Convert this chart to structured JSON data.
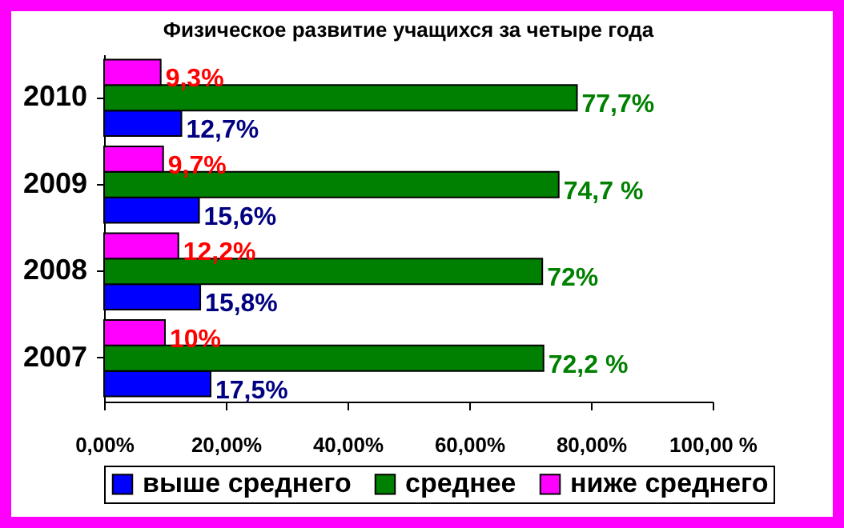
{
  "chart_data": {
    "type": "bar",
    "orientation": "horizontal",
    "title": "Физическое развитие учащихся за четыре года",
    "categories": [
      "2010",
      "2009",
      "2008",
      "2007"
    ],
    "series": [
      {
        "name": "выше среднего",
        "color": "#0000ff",
        "values": [
          12.7,
          15.6,
          15.8,
          17.5
        ],
        "value_labels": [
          "12,7%",
          "15,6%",
          "15,8%",
          "17,5%"
        ]
      },
      {
        "name": "среднее",
        "color": "#008000",
        "values": [
          77.7,
          74.7,
          72,
          72.2
        ],
        "value_labels": [
          "77,7%",
          "74,7 %",
          "72%",
          "72,2 %"
        ]
      },
      {
        "name": "ниже среднего",
        "color": "#ff00ff",
        "values": [
          9.3,
          9.7,
          12.2,
          10
        ],
        "value_labels": [
          "9,3%",
          "9,7%",
          "12,2%",
          "10%"
        ]
      }
    ],
    "xlim": [
      0,
      100
    ],
    "xticks": [
      {
        "value": 0,
        "label": "0,00%"
      },
      {
        "value": 20,
        "label": "20,00%"
      },
      {
        "value": 40,
        "label": "40,00%"
      },
      {
        "value": 60,
        "label": "60,00%"
      },
      {
        "value": 80,
        "label": "80,00%"
      },
      {
        "value": 100,
        "label": "100,00 %"
      }
    ],
    "grid": false,
    "legend": "bottom"
  }
}
